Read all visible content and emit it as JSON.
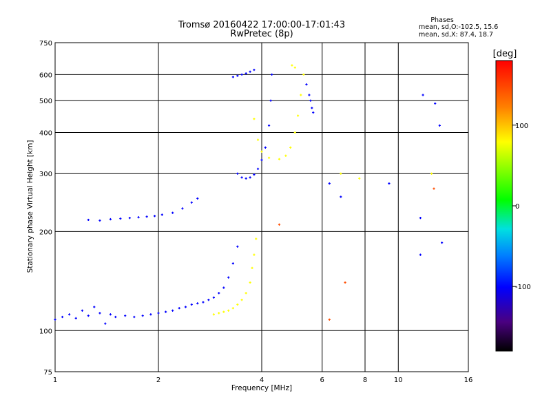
{
  "chart_data": {
    "type": "scatter",
    "title": "Tromsø 20160422 17:00:00-17:01:43",
    "subtitle": "RwPretec (8p)",
    "xlabel": "Frequency [MHz]",
    "ylabel": "Stationary phase Virtual Height [km]",
    "x_scale": "log",
    "y_scale": "log",
    "xlim": [
      1,
      16
    ],
    "ylim": [
      75,
      750
    ],
    "x_ticks": [
      1,
      2,
      4,
      6,
      8,
      10,
      16
    ],
    "x_tick_labels": [
      "1",
      "2",
      "4",
      "6",
      "8",
      "10",
      "16"
    ],
    "y_ticks": [
      75,
      100,
      200,
      300,
      400,
      500,
      600,
      750
    ],
    "y_tick_labels": [
      "75",
      "100",
      "200",
      "300",
      "400",
      "500",
      "600",
      "750"
    ],
    "phases_box": {
      "title": "Phases",
      "line_o": "mean, sd,O:-102.5, 15.6",
      "line_x": "mean, sd,X:  87.4, 18.7"
    },
    "colorbar": {
      "label": "[deg]",
      "range": [
        -180,
        180
      ],
      "ticks": [
        100,
        0,
        -100
      ],
      "tick_labels": [
        "100",
        "0",
        "-100"
      ]
    },
    "series": [
      {
        "description": "O-mode E/F1/F2 traces",
        "phase_deg": -100,
        "points": [
          [
            1.0,
            108
          ],
          [
            1.05,
            110
          ],
          [
            1.1,
            112
          ],
          [
            1.15,
            109
          ],
          [
            1.2,
            115
          ],
          [
            1.25,
            111
          ],
          [
            1.3,
            118
          ],
          [
            1.35,
            113
          ],
          [
            1.4,
            105
          ],
          [
            1.45,
            112
          ],
          [
            1.5,
            110
          ],
          [
            1.6,
            111
          ],
          [
            1.7,
            110
          ],
          [
            1.8,
            111
          ],
          [
            1.9,
            112
          ],
          [
            2.0,
            113
          ],
          [
            2.1,
            114
          ],
          [
            2.2,
            115
          ],
          [
            2.3,
            117
          ],
          [
            2.4,
            118
          ],
          [
            2.5,
            120
          ],
          [
            2.6,
            121
          ],
          [
            2.7,
            122
          ],
          [
            2.8,
            124
          ],
          [
            2.9,
            126
          ],
          [
            3.0,
            130
          ],
          [
            3.1,
            135
          ],
          [
            3.2,
            145
          ],
          [
            3.3,
            160
          ],
          [
            3.4,
            180
          ],
          [
            1.25,
            217
          ],
          [
            1.35,
            216
          ],
          [
            1.45,
            218
          ],
          [
            1.55,
            219
          ],
          [
            1.65,
            220
          ],
          [
            1.75,
            221
          ],
          [
            1.85,
            222
          ],
          [
            1.95,
            223
          ],
          [
            2.05,
            225
          ],
          [
            2.2,
            228
          ],
          [
            2.35,
            235
          ],
          [
            2.5,
            245
          ],
          [
            2.6,
            252
          ],
          [
            3.4,
            300
          ],
          [
            3.5,
            292
          ],
          [
            3.6,
            290
          ],
          [
            3.7,
            292
          ],
          [
            3.8,
            298
          ],
          [
            3.9,
            310
          ],
          [
            4.0,
            330
          ],
          [
            4.1,
            360
          ],
          [
            4.2,
            420
          ],
          [
            4.25,
            500
          ],
          [
            4.28,
            600
          ],
          [
            3.3,
            590
          ],
          [
            3.4,
            595
          ],
          [
            3.5,
            600
          ],
          [
            3.6,
            605
          ],
          [
            3.7,
            612
          ],
          [
            3.8,
            620
          ],
          [
            5.4,
            560
          ],
          [
            5.5,
            520
          ],
          [
            5.55,
            500
          ],
          [
            5.6,
            475
          ],
          [
            5.65,
            460
          ],
          [
            11.8,
            520
          ],
          [
            12.8,
            490
          ],
          [
            13.2,
            420
          ],
          [
            11.6,
            220
          ],
          [
            11.6,
            170
          ],
          [
            13.4,
            185
          ],
          [
            9.4,
            280
          ],
          [
            6.3,
            280
          ],
          [
            6.8,
            255
          ]
        ]
      },
      {
        "description": "X-mode traces",
        "phase_deg": 90,
        "points": [
          [
            2.9,
            112
          ],
          [
            3.0,
            113
          ],
          [
            3.1,
            114
          ],
          [
            3.2,
            115
          ],
          [
            3.3,
            117
          ],
          [
            3.4,
            120
          ],
          [
            3.5,
            124
          ],
          [
            3.6,
            130
          ],
          [
            3.7,
            140
          ],
          [
            3.75,
            155
          ],
          [
            3.8,
            170
          ],
          [
            3.85,
            190
          ],
          [
            3.8,
            440
          ],
          [
            3.9,
            380
          ],
          [
            4.0,
            350
          ],
          [
            4.2,
            335
          ],
          [
            4.5,
            332
          ],
          [
            4.7,
            340
          ],
          [
            4.85,
            360
          ],
          [
            5.0,
            400
          ],
          [
            5.1,
            450
          ],
          [
            5.2,
            520
          ],
          [
            5.3,
            600
          ],
          [
            4.9,
            640
          ],
          [
            5.0,
            630
          ],
          [
            6.8,
            300
          ],
          [
            7.7,
            290
          ],
          [
            12.5,
            300
          ]
        ]
      },
      {
        "description": "Scattered points",
        "phase_deg": 150,
        "points": [
          [
            6.3,
            108
          ],
          [
            7.0,
            140
          ],
          [
            12.7,
            270
          ],
          [
            4.5,
            210
          ]
        ]
      }
    ],
    "grid": true
  }
}
